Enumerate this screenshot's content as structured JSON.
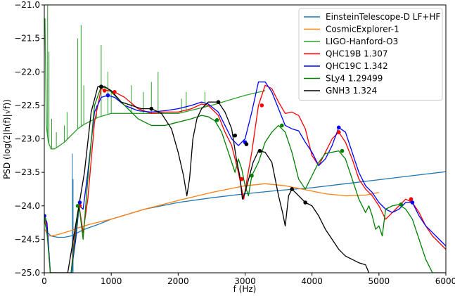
{
  "chart_data": {
    "type": "line",
    "xlabel": "f (Hz)",
    "ylabel": "PSD (log(2|h(f)|√f))",
    "xlim": [
      0,
      6000
    ],
    "ylim": [
      -25.0,
      -21.0
    ],
    "xticks": [
      0,
      1000,
      2000,
      3000,
      4000,
      5000,
      6000
    ],
    "yticks": [
      -25.0,
      -24.5,
      -24.0,
      -23.5,
      -23.0,
      -22.5,
      -22.0,
      -21.5,
      -21.0
    ],
    "xtick_labels": [
      "0",
      "1000",
      "2000",
      "3000",
      "4000",
      "5000",
      "6000"
    ],
    "ytick_labels": [
      "−25.0",
      "−24.5",
      "−24.0",
      "−23.5",
      "−23.0",
      "−22.5",
      "−22.0",
      "−21.5",
      "−21.0"
    ],
    "grid": false,
    "legend_position": "top-right",
    "series": [
      {
        "name": "EinsteinTelescope-D LF+HF",
        "color": "#1f77b4",
        "x": [
          10,
          50,
          100,
          200,
          300,
          400,
          500,
          600,
          800,
          1000,
          1500,
          2000,
          2500,
          3000,
          3500,
          4000,
          4500,
          5000,
          5500,
          6000
        ],
        "y": [
          -24.15,
          -24.4,
          -24.45,
          -24.47,
          -24.47,
          -24.45,
          -24.4,
          -24.35,
          -24.28,
          -24.2,
          -24.05,
          -23.95,
          -23.88,
          -23.82,
          -23.77,
          -23.73,
          -23.67,
          -23.61,
          -23.55,
          -23.49
        ]
      },
      {
        "name": "CosmicExplorer-1",
        "color": "#ff7f0e",
        "x": [
          10,
          50,
          100,
          200,
          300,
          400,
          500,
          700,
          1000,
          1500,
          2000,
          2500,
          3000,
          3300,
          3600,
          3900,
          4200,
          4500,
          4800,
          5000
        ],
        "y": [
          -24.35,
          -24.45,
          -24.45,
          -24.43,
          -24.4,
          -24.37,
          -24.33,
          -24.27,
          -24.2,
          -24.05,
          -23.92,
          -23.8,
          -23.7,
          -23.67,
          -23.7,
          -23.76,
          -23.82,
          -23.85,
          -23.84,
          -23.8
        ]
      },
      {
        "name": "LIGO-Hanford-O3",
        "color": "#2ca02c",
        "x": [
          10,
          30,
          60,
          100,
          150,
          200,
          300,
          400,
          500,
          600,
          800,
          1000,
          1500,
          2000,
          2500,
          3000,
          3300
        ],
        "y": [
          -21.2,
          -22.8,
          -23.05,
          -23.15,
          -23.15,
          -23.12,
          -23.05,
          -22.95,
          -22.85,
          -22.78,
          -22.68,
          -22.62,
          -22.62,
          -22.62,
          -22.5,
          -22.35,
          -22.28
        ]
      },
      {
        "name": "QHC19B 1.307",
        "color": "#ff0000",
        "x": [
          0,
          40,
          90,
          140,
          200,
          300,
          400,
          470,
          520,
          580,
          650,
          750,
          850,
          950,
          1050,
          1200,
          1400,
          1600,
          1800,
          2000,
          2200,
          2350,
          2450,
          2600,
          2700,
          2800,
          2900,
          2980,
          3030,
          3100,
          3200,
          3300,
          3400,
          3500,
          3600,
          3700,
          3800,
          3900,
          4000,
          4100,
          4200,
          4300,
          4400,
          4500,
          4600,
          4700,
          4800,
          4900,
          5000,
          5100,
          5200,
          5300,
          5400,
          5500,
          5600,
          5700,
          5800,
          5900,
          6000
        ],
        "y": [
          -24.15,
          -24.3,
          -25.0,
          -25.0,
          -25.0,
          -25.0,
          -25.0,
          -24.3,
          -24.0,
          -24.4,
          -23.9,
          -22.75,
          -22.25,
          -22.28,
          -22.3,
          -22.38,
          -22.55,
          -22.62,
          -22.6,
          -22.6,
          -22.55,
          -22.48,
          -22.5,
          -22.65,
          -22.9,
          -23.1,
          -23.5,
          -23.9,
          -23.6,
          -23.2,
          -22.5,
          -22.2,
          -22.25,
          -22.45,
          -22.62,
          -22.6,
          -22.65,
          -22.85,
          -23.25,
          -23.4,
          -23.2,
          -23.0,
          -22.9,
          -23.05,
          -23.3,
          -23.6,
          -23.75,
          -23.85,
          -24.0,
          -24.2,
          -24.1,
          -24.0,
          -23.9,
          -23.95,
          -24.1,
          -24.3,
          -24.45,
          -24.55,
          -24.65
        ]
      },
      {
        "name": "QHC19C 1.342",
        "color": "#0000ff",
        "x": [
          0,
          40,
          90,
          140,
          200,
          300,
          400,
          470,
          520,
          580,
          650,
          750,
          850,
          950,
          1050,
          1200,
          1400,
          1600,
          1800,
          2000,
          2200,
          2350,
          2450,
          2600,
          2700,
          2800,
          2900,
          3000,
          3100,
          3200,
          3300,
          3400,
          3500,
          3600,
          3700,
          3800,
          3900,
          4000,
          4100,
          4200,
          4300,
          4400,
          4500,
          4600,
          4700,
          4800,
          4900,
          5000,
          5100,
          5200,
          5300,
          5400,
          5500,
          5600,
          5700,
          5800,
          5900,
          6000
        ],
        "y": [
          -24.15,
          -24.25,
          -25.0,
          -25.0,
          -25.0,
          -25.0,
          -25.0,
          -24.5,
          -24.0,
          -24.05,
          -23.5,
          -22.6,
          -22.38,
          -22.35,
          -22.38,
          -22.5,
          -22.58,
          -22.6,
          -22.58,
          -22.55,
          -22.5,
          -22.45,
          -22.48,
          -22.6,
          -22.8,
          -23.0,
          -23.1,
          -23.0,
          -22.6,
          -22.15,
          -22.15,
          -22.3,
          -22.55,
          -22.8,
          -22.85,
          -22.88,
          -23.05,
          -23.2,
          -23.4,
          -23.3,
          -23.1,
          -22.83,
          -22.9,
          -23.2,
          -23.5,
          -23.7,
          -23.8,
          -23.95,
          -24.05,
          -24.1,
          -24.05,
          -23.95,
          -23.95,
          -24.15,
          -24.3,
          -24.4,
          -24.5,
          -24.6
        ]
      },
      {
        "name": "SLy4 1.29499",
        "color": "#008000",
        "x": [
          0,
          40,
          90,
          140,
          200,
          300,
          400,
          470,
          520,
          580,
          650,
          750,
          850,
          950,
          1050,
          1200,
          1400,
          1600,
          1800,
          2000,
          2200,
          2350,
          2450,
          2550,
          2650,
          2750,
          2850,
          2900,
          2950,
          3000,
          3050,
          3100,
          3200,
          3300,
          3400,
          3500,
          3600,
          3700,
          3800,
          3900,
          4000,
          4100,
          4200,
          4300,
          4400,
          4500,
          4600,
          4700,
          4800,
          4850,
          4900,
          4950,
          5000,
          5050,
          5100,
          5200,
          5300,
          5400,
          5500,
          5600,
          5700,
          5800,
          5900,
          6000
        ],
        "y": [
          -24.2,
          -24.4,
          -25.0,
          -25.0,
          -25.0,
          -25.0,
          -25.0,
          -24.4,
          -24.0,
          -24.5,
          -23.6,
          -22.5,
          -22.22,
          -22.25,
          -22.35,
          -22.5,
          -22.7,
          -22.8,
          -22.8,
          -22.75,
          -22.7,
          -22.65,
          -22.67,
          -22.73,
          -22.9,
          -23.2,
          -23.5,
          -23.3,
          -23.45,
          -23.7,
          -23.85,
          -23.55,
          -23.35,
          -23.05,
          -22.9,
          -22.8,
          -22.9,
          -23.2,
          -23.6,
          -23.75,
          -23.55,
          -23.35,
          -23.22,
          -23.2,
          -23.18,
          -23.3,
          -23.6,
          -23.9,
          -24.1,
          -24.0,
          -24.15,
          -24.35,
          -24.3,
          -24.45,
          -24.05,
          -24.0,
          -23.98,
          -24.05,
          -24.2,
          -24.5,
          -24.8,
          -25.0,
          -25.0,
          -25.0
        ]
      },
      {
        "name": "GNH3 1.324",
        "color": "#000000",
        "x": [
          350,
          500,
          600,
          700,
          800,
          900,
          1000,
          1150,
          1300,
          1450,
          1600,
          1750,
          1900,
          2000,
          2080,
          2130,
          2170,
          2220,
          2280,
          2350,
          2450,
          2600,
          2700,
          2800,
          2870,
          2920,
          2960,
          3000,
          3040,
          3080,
          3120,
          3200,
          3300,
          3400,
          3500,
          3560,
          3600,
          3650,
          3700,
          3800,
          3900,
          4000,
          4100,
          4200,
          4300,
          4400,
          4500,
          4600,
          4700,
          4800,
          4850
        ],
        "y": [
          -25.0,
          -24.1,
          -23.5,
          -22.6,
          -22.22,
          -22.22,
          -22.28,
          -22.45,
          -22.5,
          -22.55,
          -22.55,
          -22.62,
          -22.85,
          -23.2,
          -23.55,
          -23.85,
          -23.6,
          -23.0,
          -22.7,
          -22.55,
          -22.45,
          -22.45,
          -22.6,
          -22.85,
          -23.3,
          -23.55,
          -23.9,
          -23.8,
          -23.65,
          -23.5,
          -23.35,
          -23.18,
          -23.2,
          -23.35,
          -23.85,
          -24.1,
          -24.3,
          -23.85,
          -23.75,
          -23.85,
          -23.95,
          -24.0,
          -24.15,
          -24.35,
          -24.5,
          -24.65,
          -24.75,
          -24.8,
          -24.85,
          -24.88,
          -25.0
        ]
      }
    ],
    "markers": [
      {
        "series": "QHC19B 1.307",
        "color": "#ff0000",
        "points": [
          [
            0,
            -24.15
          ],
          [
            530,
            -24.0
          ],
          [
            900,
            -22.28
          ],
          [
            1050,
            -22.3
          ],
          [
            2950,
            -23.6
          ],
          [
            3250,
            -22.5
          ],
          [
            4400,
            -22.9
          ],
          [
            5480,
            -23.9
          ]
        ]
      },
      {
        "series": "QHC19C 1.342",
        "color": "#0000ff",
        "points": [
          [
            0,
            -24.15
          ],
          [
            530,
            -23.95
          ],
          [
            950,
            -22.35
          ],
          [
            3000,
            -23.05
          ],
          [
            4400,
            -22.83
          ],
          [
            5500,
            -23.95
          ]
        ]
      },
      {
        "series": "SLy4 1.29499",
        "color": "#008000",
        "points": [
          [
            0,
            -24.2
          ],
          [
            500,
            -24.0
          ],
          [
            850,
            -22.22
          ],
          [
            2580,
            -22.72
          ],
          [
            3100,
            -23.55
          ],
          [
            3550,
            -22.8
          ],
          [
            4450,
            -23.18
          ],
          [
            5330,
            -23.98
          ]
        ]
      },
      {
        "series": "GNH3 1.324",
        "color": "#000000",
        "points": [
          [
            850,
            -22.22
          ],
          [
            1600,
            -22.55
          ],
          [
            2600,
            -22.45
          ],
          [
            2850,
            -22.95
          ],
          [
            3020,
            -23.08
          ],
          [
            3220,
            -23.18
          ],
          [
            3700,
            -23.75
          ],
          [
            3900,
            -23.95
          ]
        ]
      }
    ],
    "noise_lines": [
      {
        "x": 420,
        "y_from": -25.0,
        "y_to": -23.22,
        "color": "#1f77b4"
      },
      {
        "x": 430,
        "y_from": -25.0,
        "y_to": -23.6,
        "color": "#1f77b4"
      }
    ],
    "spikes": [
      {
        "x": 50,
        "y_top": -21.0
      },
      {
        "x": 70,
        "y_top": -21.7
      },
      {
        "x": 110,
        "y_top": -22.7
      },
      {
        "x": 180,
        "y_top": -22.9
      },
      {
        "x": 300,
        "y_top": -22.8
      },
      {
        "x": 340,
        "y_top": -22.6
      },
      {
        "x": 500,
        "y_top": -21.5
      },
      {
        "x": 550,
        "y_top": -21.3
      },
      {
        "x": 590,
        "y_top": -22.2
      },
      {
        "x": 780,
        "y_top": -22.5
      },
      {
        "x": 850,
        "y_top": -21.6
      },
      {
        "x": 950,
        "y_top": -22.0
      },
      {
        "x": 1000,
        "y_top": -22.3
      },
      {
        "x": 1300,
        "y_top": -22.2
      },
      {
        "x": 1480,
        "y_top": -22.3
      },
      {
        "x": 1600,
        "y_top": -22.15
      },
      {
        "x": 1700,
        "y_top": -22.0
      },
      {
        "x": 2050,
        "y_top": -22.4
      },
      {
        "x": 2120,
        "y_top": -22.3
      },
      {
        "x": 2400,
        "y_top": -22.3
      }
    ]
  }
}
